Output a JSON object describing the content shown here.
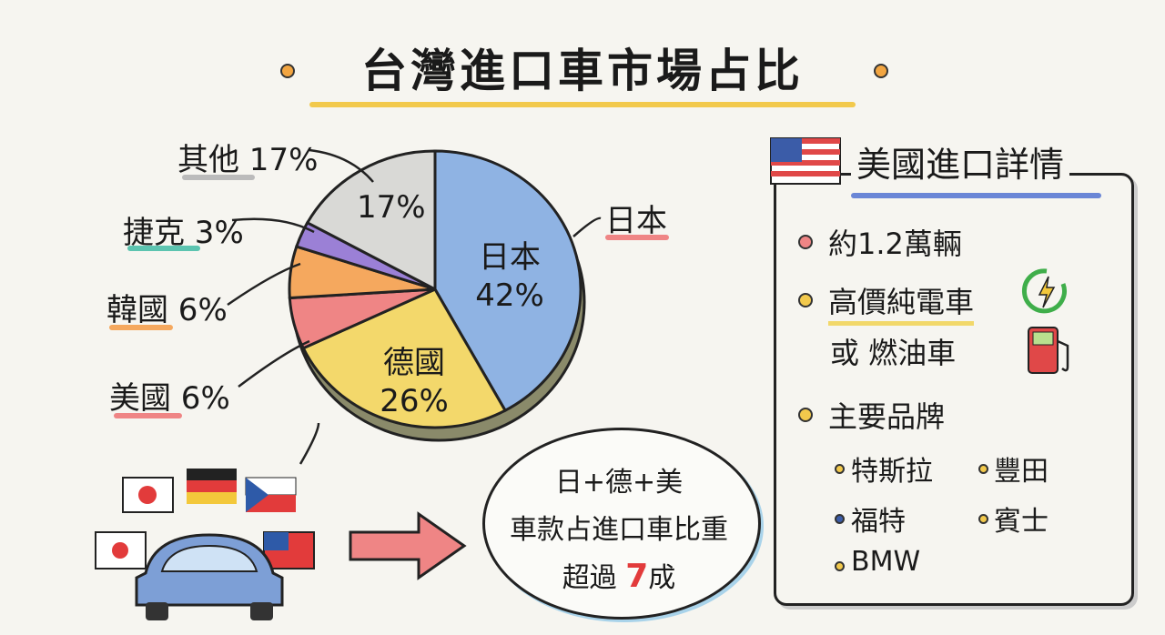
{
  "title": "台灣進口車市場占比",
  "chart_data": {
    "type": "pie",
    "title": "台灣進口車市場占比",
    "categories": [
      "日本",
      "德國",
      "美國",
      "韓國",
      "捷克",
      "其他"
    ],
    "values": [
      42,
      26,
      6,
      6,
      3,
      17
    ],
    "slice_labels": [
      "日本 42%",
      "德國 26%",
      "",
      "",
      "",
      "17%"
    ],
    "outside_labels": {
      "japan": "日本",
      "us": "美國 6%",
      "korea": "韓國 6%",
      "czech": "捷克 3%",
      "other": "其他 17%"
    },
    "colors": [
      "#8fb3e3",
      "#f3d86b",
      "#ef8585",
      "#f5a85e",
      "#9b80d6",
      "#d9d9d6"
    ]
  },
  "bubble": {
    "line1": "日+德+美",
    "line2": "車款占進口車比重",
    "line3a": "超過",
    "line3b": "7",
    "line3c": "成"
  },
  "panel": {
    "title": "美國進口詳情",
    "item1": "約1.2萬輛",
    "item2a": "高價純電車",
    "item2b": "或 燃油車",
    "item3": "主要品牌",
    "brands": [
      "特斯拉",
      "豐田",
      "福特",
      "賓士",
      "BMW"
    ]
  }
}
